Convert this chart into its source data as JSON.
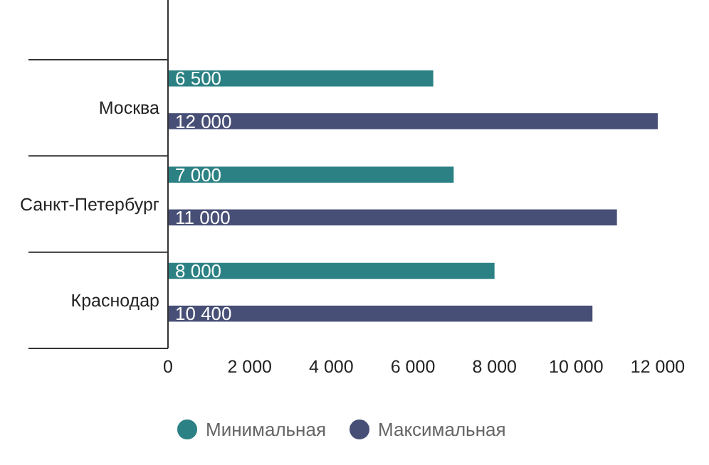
{
  "chart_data": {
    "type": "bar",
    "orientation": "horizontal",
    "categories": [
      "Москва",
      "Санкт-Петербург",
      "Краснодар"
    ],
    "series": [
      {
        "name": "Минимальная",
        "color": "#2b8183",
        "values": [
          6500,
          7000,
          8000
        ],
        "value_labels": [
          "6 500",
          "7 000",
          "8 000"
        ]
      },
      {
        "name": "Максимальная",
        "color": "#474f76",
        "values": [
          12000,
          11000,
          10400
        ],
        "value_labels": [
          "12 000",
          "11 000",
          "10 400"
        ]
      }
    ],
    "xlim": [
      0,
      12000
    ],
    "xticks": [
      0,
      {
        "value": 2000,
        "label": "2 000"
      },
      {
        "value": 4000,
        "label": "4 000"
      },
      {
        "value": 6000,
        "label": "6 000"
      },
      {
        "value": 8000,
        "label": "8 000"
      },
      {
        "value": 10000,
        "label": "10 000"
      },
      {
        "value": 12000,
        "label": "12 000"
      }
    ],
    "grid": false,
    "legend": "bottom"
  }
}
